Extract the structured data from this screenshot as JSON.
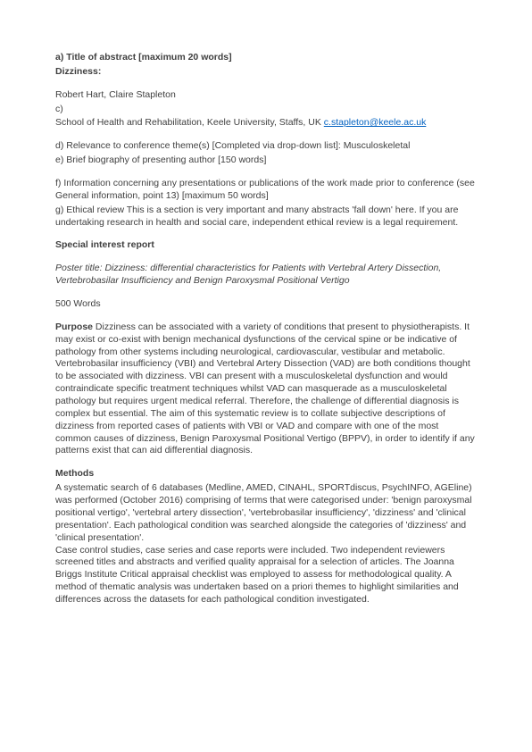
{
  "colors": {
    "text": "#3f3f3f",
    "link": "#0563c1",
    "background": "#ffffff"
  },
  "typography": {
    "font_family": "Arial",
    "body_fontsize_pt": 8,
    "line_height": 1.32
  },
  "header": {
    "line_a": "a) Title of abstract [maximum 20 words]",
    "title": "Dizziness:"
  },
  "authors": "Robert Hart, Claire Stapleton",
  "section_c_label": "c)",
  "affiliation_prefix": "School of Health and Rehabilitation, Keele University, Staffs, UK ",
  "affiliation_email": "c.stapleton@keele.ac.uk",
  "line_d": "d) Relevance to conference theme(s) [Completed via drop-down list]: Musculoskeletal",
  "line_e": "e) Brief biography of presenting author [150 words]",
  "line_f": "f) Information concerning any presentations or publications of the work made prior to conference (see General information, point 13) [maximum 50 words]",
  "line_g": "g) Ethical review This is a section is very important and many abstracts 'fall down' here. If you are undertaking research in health and social care, independent ethical review is a legal requirement.",
  "special_interest_heading": "Special interest report",
  "poster_title": "Poster title: Dizziness: differential characteristics for Patients with Vertebral Artery Dissection, Vertebrobasilar Insufficiency and Benign Paroxysmal Positional Vertigo",
  "word_count": "500 Words",
  "purpose": {
    "label": "Purpose",
    "text": "  Dizziness can be associated with a variety of conditions that present to physiotherapists.  It may exist or co-exist with benign mechanical dysfunctions of the cervical spine or be indicative of pathology from other systems including neurological, cardiovascular, vestibular and metabolic.  Vertebrobasilar insufficiency (VBI) and Vertebral Artery Dissection (VAD) are both conditions thought to be associated with dizziness. VBI can present with a musculoskeletal dysfunction and would contraindicate specific treatment techniques whilst VAD can masquerade as a musculoskeletal pathology but requires urgent medical referral.  Therefore, the challenge of differential diagnosis is complex but essential.  The aim of this systematic review is to collate subjective descriptions of dizziness from reported cases of patients with VBI or VAD and compare with one of the most common causes of dizziness, Benign Paroxysmal Positional Vertigo (BPPV), in order to identify if any patterns exist that can aid differential diagnosis."
  },
  "methods": {
    "label": "Methods",
    "text": "A systematic search of 6 databases (Medline, AMED, CINAHL, SPORTdiscus, PsychINFO, AGEline) was performed (October 2016) comprising of terms that were categorised under: 'benign paroxysmal positional vertigo', 'vertebral artery dissection', 'vertebrobasilar insufficiency', 'dizziness' and 'clinical presentation'.  Each pathological condition was searched alongside the categories of 'dizziness' and 'clinical presentation'.\nCase control studies, case series and case reports were included.  Two independent reviewers screened titles and abstracts and verified quality appraisal for a selection of articles.  The Joanna Briggs Institute Critical appraisal checklist was employed to assess for methodological quality.  A method of thematic analysis was undertaken based on a priori themes to highlight similarities and differences across the datasets for each pathological condition investigated."
  }
}
